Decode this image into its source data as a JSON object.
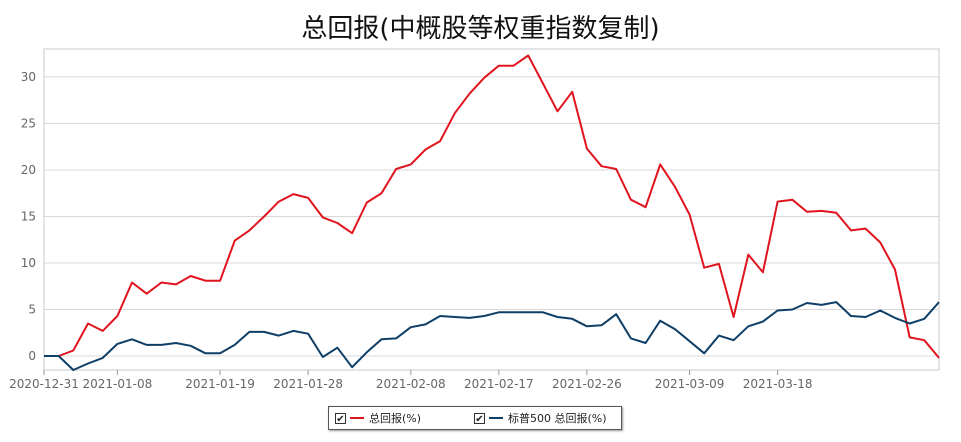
{
  "chart_data": {
    "type": "line",
    "title": "总回报(中概股等权重指数复制)",
    "xlabel": "",
    "ylabel": "",
    "ylim": [
      -1.5,
      33
    ],
    "yticks": [
      0,
      5,
      10,
      15,
      20,
      25,
      30
    ],
    "xtick_labels": [
      "2020-12-31",
      "2021-01-08",
      "2021-01-19",
      "2021-01-28",
      "2021-02-08",
      "2021-02-17",
      "2021-02-26",
      "2021-03-09",
      "2021-03-18"
    ],
    "xtick_indices": [
      0,
      5,
      12,
      18,
      25,
      31,
      37,
      44,
      50
    ],
    "grid": true,
    "legend": "bottom-center",
    "series": [
      {
        "name": "总回报(%)",
        "color": "#e0141e",
        "values": [
          0.0,
          0.0,
          0.6,
          3.5,
          2.7,
          4.3,
          7.9,
          6.7,
          7.9,
          7.7,
          8.6,
          8.1,
          8.1,
          12.4,
          13.5,
          15.0,
          16.6,
          17.4,
          17.0,
          14.9,
          14.3,
          13.2,
          16.5,
          17.5,
          20.1,
          20.6,
          22.2,
          23.1,
          26.1,
          28.2,
          29.9,
          31.2,
          31.2,
          32.3,
          29.3,
          26.3,
          28.4,
          22.3,
          20.4,
          20.1,
          16.8,
          16.0,
          20.6,
          18.2,
          15.2,
          9.5,
          9.9,
          4.2,
          10.9,
          9.0,
          16.6,
          16.8,
          15.5,
          15.6,
          15.4,
          13.5,
          13.7,
          12.2,
          9.3,
          2.0,
          1.7,
          -0.2
        ]
      },
      {
        "name": "标普500 总回报(%)",
        "color": "#0f3e66",
        "values": [
          0.0,
          0.0,
          -1.5,
          -0.8,
          -0.2,
          1.3,
          1.8,
          1.2,
          1.2,
          1.4,
          1.1,
          0.3,
          0.3,
          1.2,
          2.6,
          2.6,
          2.2,
          2.7,
          2.4,
          -0.1,
          0.9,
          -1.2,
          0.4,
          1.8,
          1.9,
          3.1,
          3.4,
          4.3,
          4.2,
          4.1,
          4.3,
          4.7,
          4.7,
          4.7,
          4.7,
          4.2,
          4.0,
          3.2,
          3.3,
          4.5,
          1.9,
          1.4,
          3.8,
          2.9,
          1.6,
          0.3,
          2.2,
          1.7,
          3.2,
          3.7,
          4.9,
          5.0,
          5.7,
          5.5,
          5.8,
          4.3,
          4.2,
          4.9,
          4.1,
          3.5,
          4.0,
          5.8
        ]
      }
    ]
  },
  "legend": {
    "items": [
      {
        "check": "✔",
        "label": "总回报(%)",
        "color": "#e0141e"
      },
      {
        "check": "✔",
        "label": "标普500 总回报(%)",
        "color": "#0f3e66"
      }
    ]
  }
}
